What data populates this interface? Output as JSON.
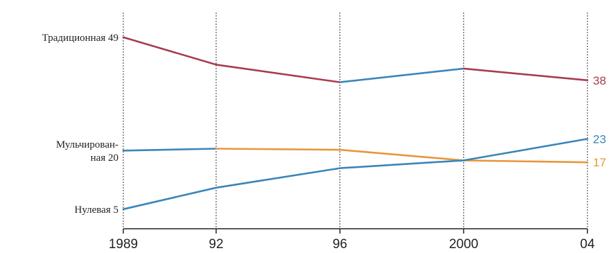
{
  "chart_data": {
    "type": "line",
    "title": "",
    "xlabel": "",
    "ylabel": "",
    "x": [
      1989,
      1992,
      1996,
      2000,
      2004
    ],
    "x_tick_labels": [
      "1989",
      "92",
      "96",
      "2000",
      "04"
    ],
    "ylim": [
      0,
      55
    ],
    "grid": "vertical dashed lines at each year",
    "segments": [
      {
        "color": "#a83c4f",
        "points": [
          [
            1989,
            49
          ],
          [
            1992,
            42
          ],
          [
            1996,
            37.5
          ]
        ]
      },
      {
        "color": "#3a86b8",
        "points": [
          [
            1996,
            37.5
          ],
          [
            2000,
            41
          ]
        ]
      },
      {
        "color": "#a83c4f",
        "points": [
          [
            2000,
            41
          ],
          [
            2004,
            38
          ]
        ]
      },
      {
        "color": "#3a86b8",
        "points": [
          [
            1989,
            20
          ],
          [
            1992,
            20.5
          ]
        ]
      },
      {
        "color": "#e8963a",
        "points": [
          [
            1992,
            20.5
          ],
          [
            1996,
            20.2
          ],
          [
            2000,
            17.5
          ],
          [
            2004,
            17
          ]
        ]
      },
      {
        "color": "#3a86b8",
        "points": [
          [
            1989,
            5
          ],
          [
            1992,
            10.5
          ],
          [
            1996,
            15.5
          ],
          [
            2000,
            17.5
          ],
          [
            2004,
            23
          ]
        ]
      }
    ],
    "start_labels": [
      {
        "lines": [
          "Традиционная 49"
        ],
        "value": 49
      },
      {
        "lines": [
          "Мульчирован-",
          "ная 20"
        ],
        "value": 20
      },
      {
        "lines": [
          "Нулевая 5"
        ],
        "value": 5
      }
    ],
    "end_labels": [
      {
        "text": "38",
        "value": 38,
        "color": "#a83c4f"
      },
      {
        "text": "23",
        "value": 23,
        "color": "#3a86b8"
      },
      {
        "text": "17",
        "value": 17,
        "color": "#e8963a"
      }
    ]
  }
}
